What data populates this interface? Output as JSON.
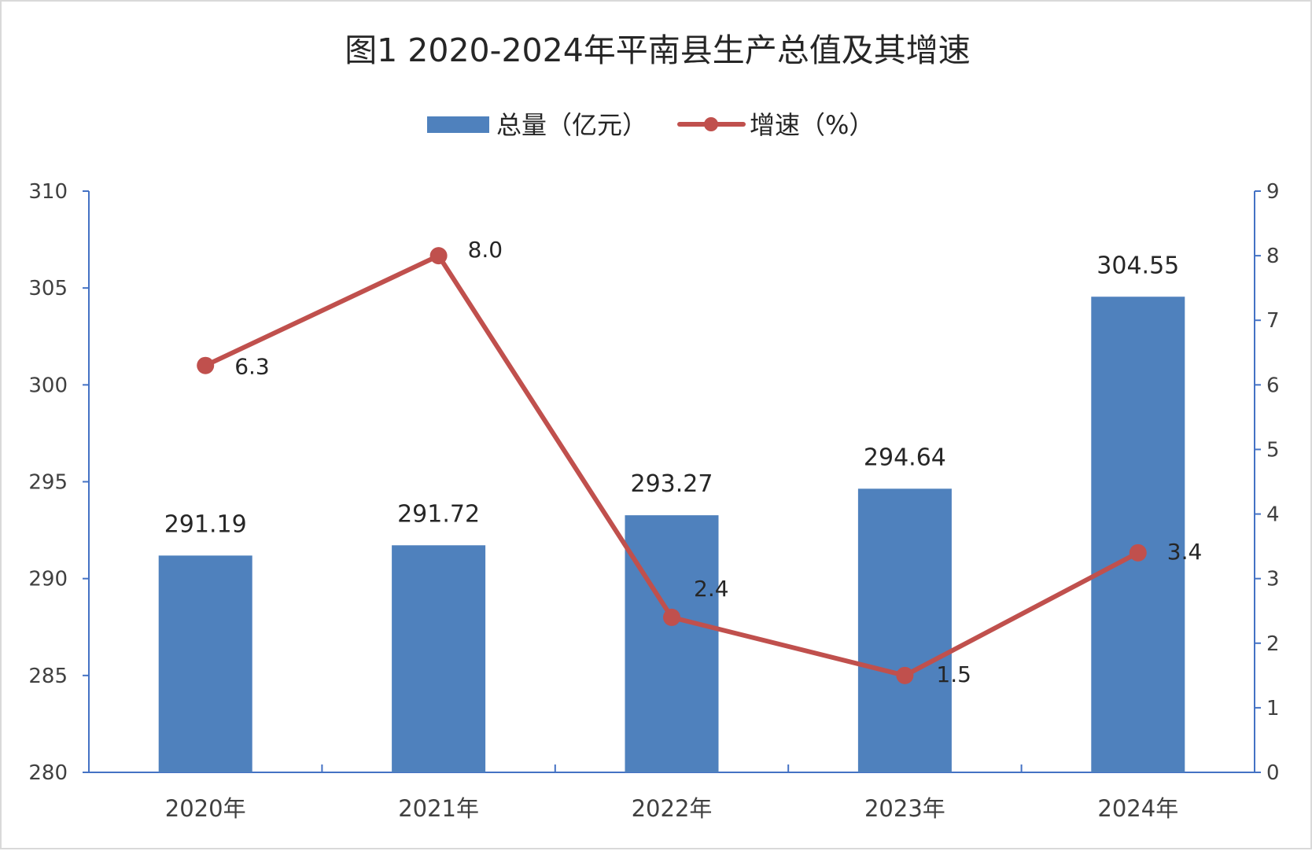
{
  "chart_data": {
    "type": "bar+line",
    "title": "图1 2020-2024年平南县生产总值及其增速",
    "categories": [
      "2020年",
      "2021年",
      "2022年",
      "2023年",
      "2024年"
    ],
    "series": [
      {
        "name": "总量（亿元）",
        "type": "bar",
        "axis": "left",
        "values": [
          291.19,
          291.72,
          293.27,
          294.64,
          304.55
        ],
        "labels": [
          "291.19",
          "291.72",
          "293.27",
          "294.64",
          "304.55"
        ],
        "color": "#4f81bd"
      },
      {
        "name": "增速（%）",
        "type": "line",
        "axis": "right",
        "values": [
          6.3,
          8.0,
          2.4,
          1.5,
          3.4
        ],
        "labels": [
          "6.3",
          "8.0",
          "2.4",
          "1.5",
          "3.4"
        ],
        "color": "#c0504d"
      }
    ],
    "y_left": {
      "range": [
        280,
        310
      ],
      "ticks": [
        "280",
        "285",
        "290",
        "295",
        "300",
        "305",
        "310"
      ]
    },
    "y_right": {
      "range": [
        0,
        9
      ],
      "ticks": [
        "0",
        "1",
        "2",
        "3",
        "4",
        "5",
        "6",
        "7",
        "8",
        "9"
      ]
    },
    "grid": false,
    "legend": "top-center",
    "axis_color": "#4472c4"
  }
}
